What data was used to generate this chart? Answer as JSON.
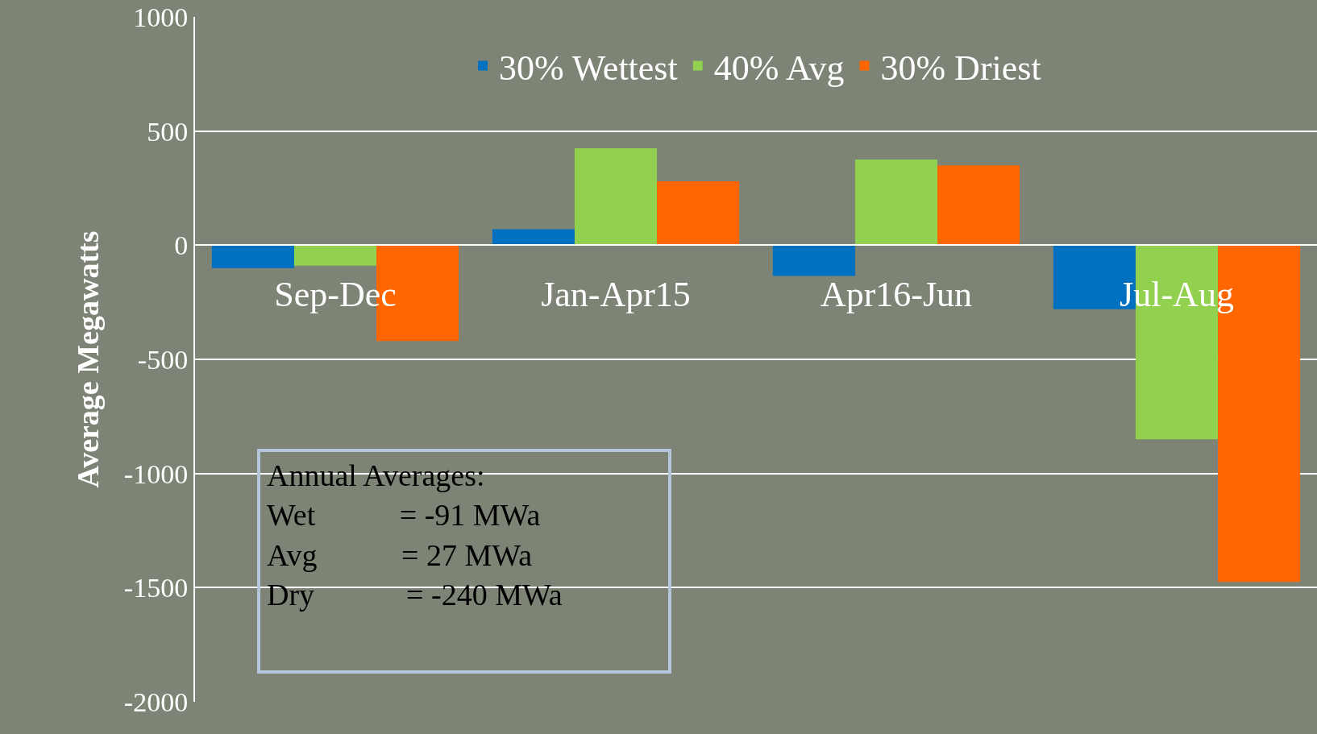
{
  "chart_data": {
    "type": "bar",
    "ylabel": "Average Megawatts",
    "categories": [
      "Sep-Dec",
      "Jan-Apr15",
      "Apr16-Jun",
      "Jul-Aug"
    ],
    "series": [
      {
        "name": "30% Wettest",
        "color": "#0070c0",
        "values": [
          -100,
          70,
          -135,
          -280
        ]
      },
      {
        "name": "40% Avg",
        "color": "#92d050",
        "values": [
          -90,
          425,
          375,
          -850
        ]
      },
      {
        "name": "30% Driest",
        "color": "#ff6600",
        "values": [
          -420,
          280,
          350,
          -1475
        ]
      }
    ],
    "ylim": [
      -2000,
      1000
    ],
    "yticks": [
      -2000,
      -1500,
      -1000,
      -500,
      0,
      500,
      1000
    ],
    "grid": "y",
    "legend": "top",
    "annotations": [
      "Annual Averages:\nWet           = -91 MWa\nAvg           = 27 MWa\nDry            = -240 MWa"
    ]
  }
}
